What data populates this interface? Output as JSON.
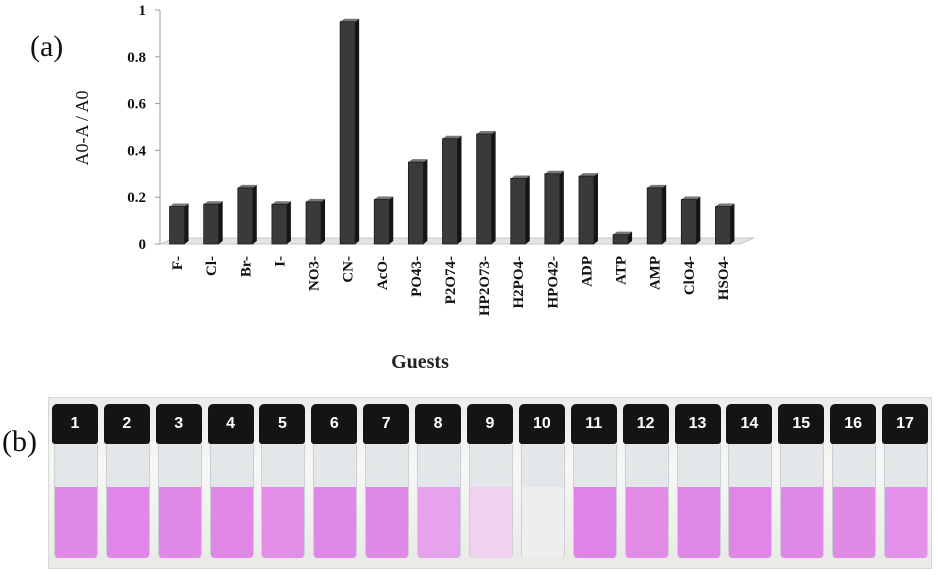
{
  "panels": {
    "a": "(a)",
    "b": "(b)"
  },
  "chart_data": {
    "type": "bar",
    "title": "",
    "xlabel": "Guests",
    "ylabel": "A0-A / A0",
    "ylim": [
      0,
      1
    ],
    "yticks": [
      "0",
      "0.2",
      "0.4",
      "0.6",
      "0.8",
      "1"
    ],
    "grid": false,
    "legend": "none",
    "bar_color": "#3a3a3a",
    "categories": [
      "F-",
      "Cl-",
      "Br-",
      "I-",
      "NO3-",
      "CN-",
      "AcO-",
      "PO43-",
      "P2O74-",
      "HP2O73-",
      "H2PO4-",
      "HPO42-",
      "ADP",
      "ATP",
      "AMP",
      "ClO4-",
      "HSO4-"
    ],
    "values": [
      0.16,
      0.17,
      0.24,
      0.17,
      0.18,
      0.95,
      0.19,
      0.35,
      0.45,
      0.47,
      0.28,
      0.3,
      0.29,
      0.04,
      0.24,
      0.19,
      0.16
    ]
  },
  "photo": {
    "vials": [
      {
        "number": "1",
        "color": "#e08ae8"
      },
      {
        "number": "2",
        "color": "#e086e8"
      },
      {
        "number": "3",
        "color": "#e088e8"
      },
      {
        "number": "4",
        "color": "#df86e7"
      },
      {
        "number": "5",
        "color": "#e28ee8"
      },
      {
        "number": "6",
        "color": "#e088e8"
      },
      {
        "number": "7",
        "color": "#e08ae8"
      },
      {
        "number": "8",
        "color": "#e6a2ec"
      },
      {
        "number": "9",
        "color": "#eed2f0"
      },
      {
        "number": "10",
        "color": "#ecefee"
      },
      {
        "number": "11",
        "color": "#de84e6"
      },
      {
        "number": "12",
        "color": "#e28ce8"
      },
      {
        "number": "13",
        "color": "#e088e8"
      },
      {
        "number": "14",
        "color": "#df86e7"
      },
      {
        "number": "15",
        "color": "#e088e8"
      },
      {
        "number": "16",
        "color": "#e08ae8"
      },
      {
        "number": "17",
        "color": "#e290ea"
      }
    ]
  }
}
